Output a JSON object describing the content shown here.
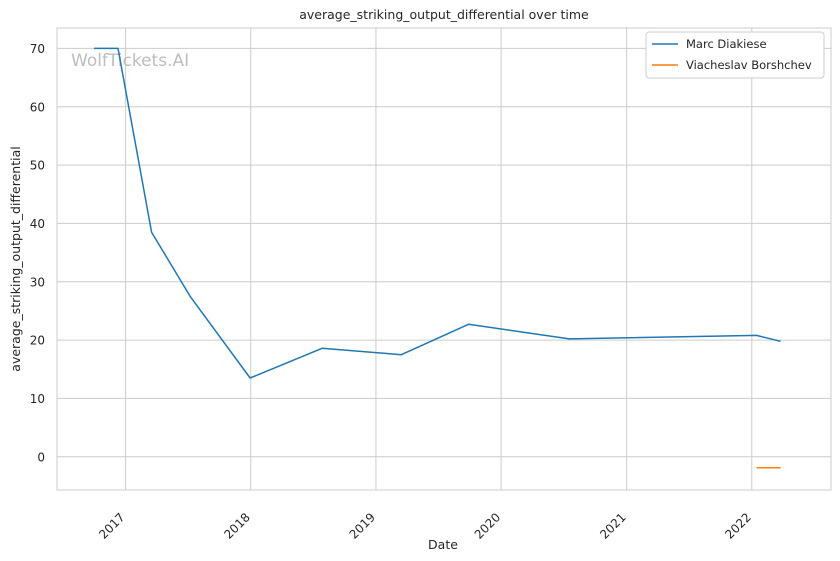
{
  "chart_data": {
    "type": "line",
    "title": "average_striking_output_differential over time",
    "xlabel": "Date",
    "ylabel": "average_striking_output_differential",
    "watermark": "WolfTickets.AI",
    "x_ticks": [
      "2017",
      "2018",
      "2019",
      "2020",
      "2021",
      "2022"
    ],
    "y_ticks": [
      0,
      10,
      20,
      30,
      40,
      50,
      60,
      70
    ],
    "xlim": [
      "2016-06-15",
      "2022-08-20"
    ],
    "ylim": [
      -5.7,
      73.5
    ],
    "grid": true,
    "legend_position": "top-right",
    "series": [
      {
        "name": "Marc Diakiese",
        "color": "#1f77b4",
        "points": [
          {
            "x": "2016-10-01",
            "y": 70.0
          },
          {
            "x": "2016-12-10",
            "y": 70.0
          },
          {
            "x": "2017-03-18",
            "y": 38.5
          },
          {
            "x": "2017-07-08",
            "y": 27.5
          },
          {
            "x": "2017-12-30",
            "y": 13.5
          },
          {
            "x": "2018-07-28",
            "y": 18.6
          },
          {
            "x": "2019-03-16",
            "y": 17.5
          },
          {
            "x": "2019-09-28",
            "y": 22.7
          },
          {
            "x": "2020-07-18",
            "y": 20.2
          },
          {
            "x": "2022-01-15",
            "y": 20.8
          },
          {
            "x": "2022-03-26",
            "y": 19.8
          }
        ]
      },
      {
        "name": "Viacheslav Borshchev",
        "color": "#ff7f0e",
        "points": [
          {
            "x": "2022-01-15",
            "y": -1.9
          },
          {
            "x": "2022-03-26",
            "y": -1.9
          }
        ]
      }
    ]
  }
}
